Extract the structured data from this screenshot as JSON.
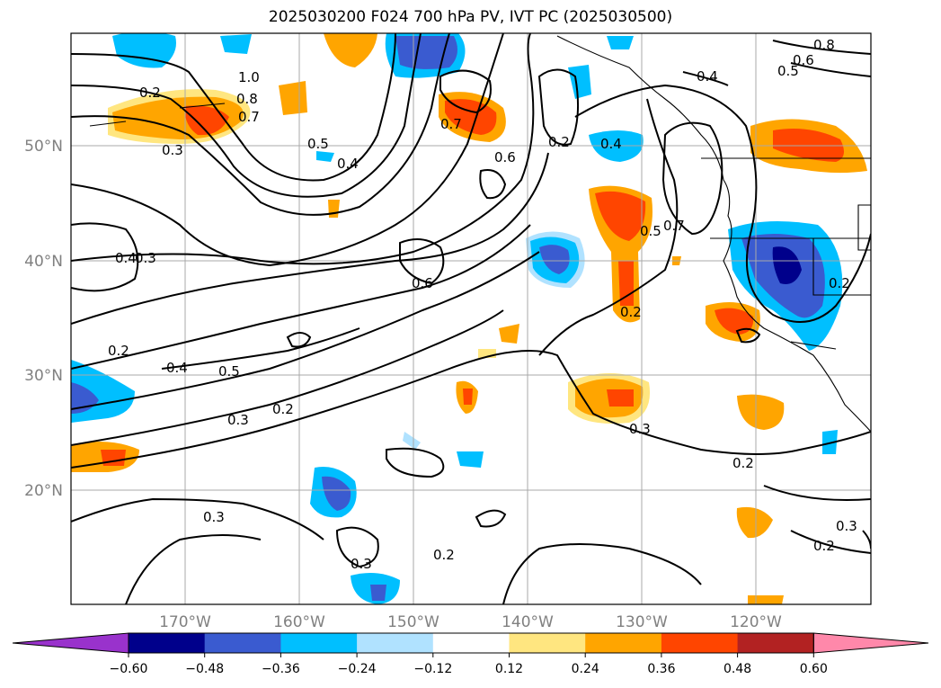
{
  "title": "2025030200 F024 700 hPa PV, IVT PC (2025030500)",
  "lon_labels": [
    "170°W",
    "160°W",
    "150°W",
    "140°W",
    "130°W",
    "120°W"
  ],
  "lat_labels": [
    "50°N",
    "40°N",
    "30°N",
    "20°N"
  ],
  "contour_labels": [
    "1.0",
    "0.8",
    "0.7",
    "0.2",
    "0.3",
    "0.5",
    "0.4",
    "0.7",
    "0.6",
    "0.2",
    "0.4",
    "0.5",
    "0.7",
    "0.4",
    "0.5",
    "0.6",
    "0.8",
    "0.4",
    "0.3",
    "0.2",
    "0.4",
    "0.5",
    "0.3",
    "0.2",
    "0.6",
    "0.2",
    "0.2",
    "0.3",
    "0.2",
    "0.3",
    "0.3",
    "0.2",
    "0.2",
    "0.3"
  ],
  "colorbar": {
    "ticks": [
      "−0.60",
      "−0.48",
      "−0.36",
      "−0.24",
      "−0.12",
      "0.12",
      "0.24",
      "0.36",
      "0.48",
      "0.60"
    ],
    "colors": [
      "#9932cc",
      "#00008b",
      "#3a5bd0",
      "#00bfff",
      "#b0e2ff",
      "#ffffff",
      "#ffe680",
      "#ffa500",
      "#ff4500",
      "#b22222",
      "#ff88aa"
    ]
  }
}
